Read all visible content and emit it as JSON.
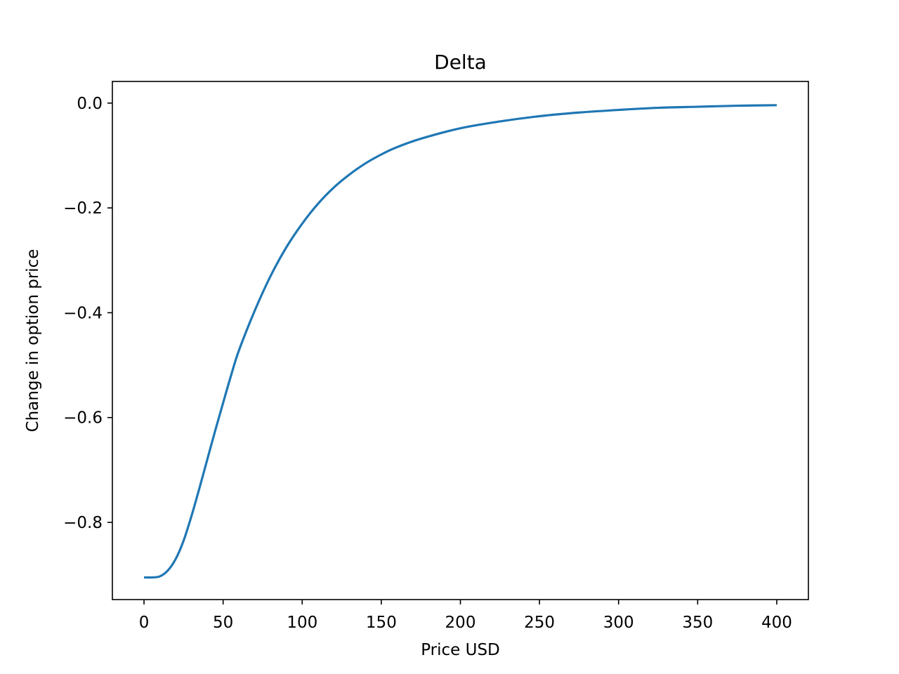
{
  "chart_data": {
    "type": "line",
    "title": "Delta",
    "xlabel": "Price USD",
    "ylabel": "Change in option price",
    "xlim": [
      -20,
      420
    ],
    "ylim": [
      -0.9473,
      0.0413
    ],
    "xticks": [
      0,
      50,
      100,
      150,
      200,
      250,
      300,
      350,
      400
    ],
    "xtick_labels": [
      "0",
      "50",
      "100",
      "150",
      "200",
      "250",
      "300",
      "350",
      "400"
    ],
    "yticks": [
      0.0,
      -0.2,
      -0.4,
      -0.6,
      -0.8
    ],
    "ytick_labels": [
      "0.0",
      "−0.2",
      "−0.4",
      "−0.6",
      "−0.8"
    ],
    "grid": false,
    "series": [
      {
        "color": "#1f77b4",
        "x": [
          0,
          5,
          10,
          15,
          20,
          25,
          30,
          35,
          40,
          45,
          50,
          55,
          60,
          70,
          80,
          90,
          100,
          110,
          120,
          130,
          140,
          150,
          160,
          175,
          200,
          225,
          250,
          275,
          300,
          325,
          350,
          375,
          400
        ],
        "y": [
          -0.905,
          -0.905,
          -0.903,
          -0.892,
          -0.87,
          -0.835,
          -0.788,
          -0.735,
          -0.68,
          -0.625,
          -0.572,
          -0.52,
          -0.472,
          -0.396,
          -0.33,
          -0.275,
          -0.23,
          -0.192,
          -0.161,
          -0.136,
          -0.115,
          -0.098,
          -0.084,
          -0.068,
          -0.048,
          -0.035,
          -0.025,
          -0.018,
          -0.013,
          -0.009,
          -0.007,
          -0.005,
          -0.004
        ]
      }
    ]
  }
}
